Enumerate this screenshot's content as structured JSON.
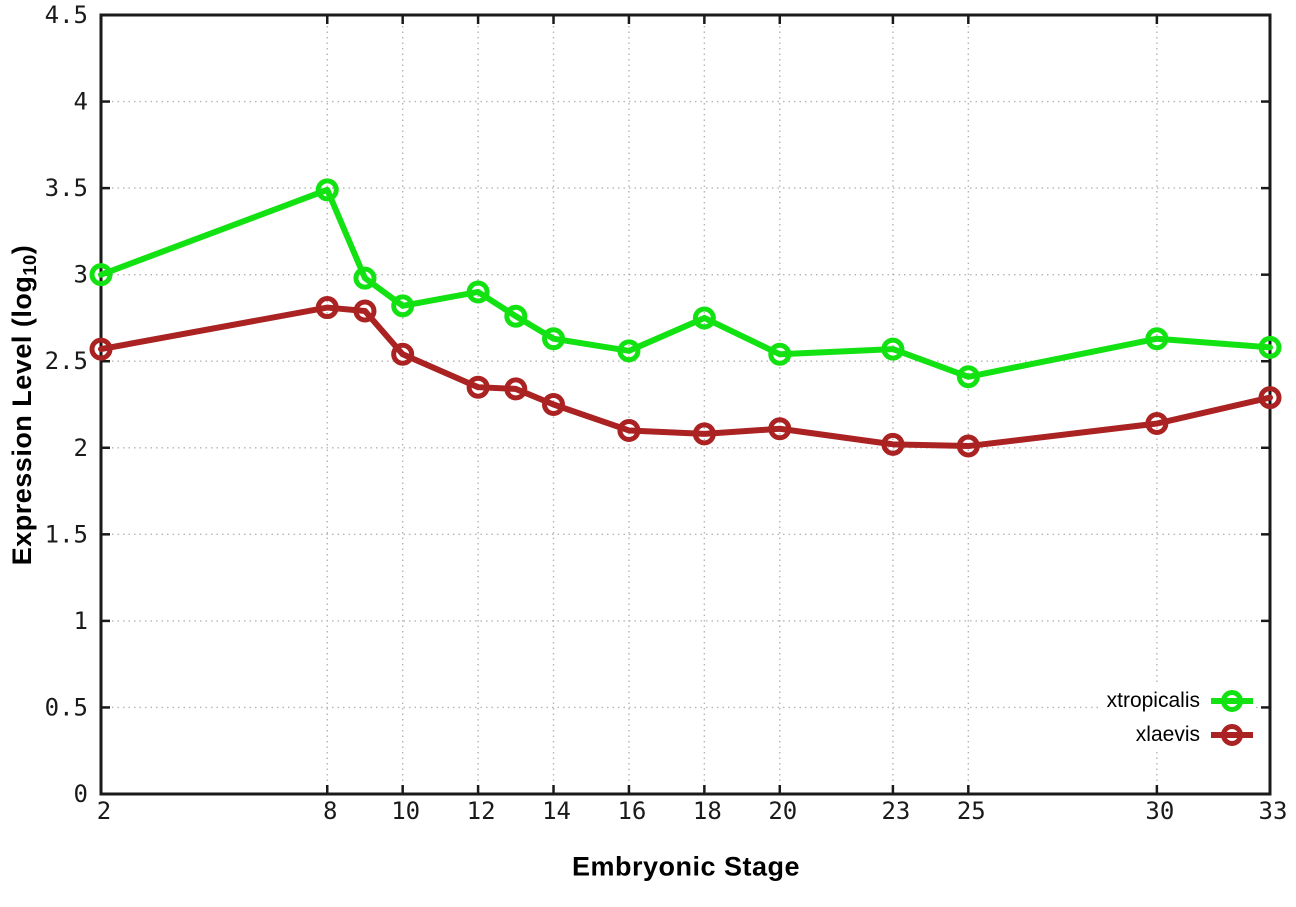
{
  "chart_data": {
    "type": "line",
    "title": "",
    "xlabel": "Embryonic Stage",
    "ylabel": "Expression Level (log10)",
    "ylabel_parts": {
      "main": "Expression Level (log",
      "sub": "10",
      "close": ")"
    },
    "x": [
      2,
      8,
      9,
      10,
      12,
      13,
      14,
      16,
      18,
      20,
      23,
      25,
      30,
      33
    ],
    "series": [
      {
        "name": "xtropicalis",
        "color": "#12e112",
        "values": [
          3.0,
          3.49,
          2.98,
          2.82,
          2.9,
          2.76,
          2.63,
          2.56,
          2.75,
          2.54,
          2.57,
          2.41,
          2.63,
          2.58
        ]
      },
      {
        "name": "xlaevis",
        "color": "#aa2222",
        "values": [
          2.57,
          2.81,
          2.79,
          2.54,
          2.35,
          2.34,
          2.25,
          2.1,
          2.08,
          2.11,
          2.02,
          2.01,
          2.14,
          2.29
        ]
      }
    ],
    "xlim": [
      2,
      33
    ],
    "ylim": [
      0,
      4.5
    ],
    "x_ticks": {
      "values": [
        2,
        8,
        10,
        12,
        14,
        16,
        18,
        20,
        23,
        25,
        30,
        33
      ],
      "labels": [
        "2",
        "8",
        "10",
        "12",
        "14",
        "16",
        "18",
        "20",
        "23",
        "25",
        "30",
        "33"
      ]
    },
    "y_ticks": {
      "values": [
        0,
        0.5,
        1,
        1.5,
        2,
        2.5,
        3,
        3.5,
        4,
        4.5
      ],
      "labels": [
        "0",
        "0.5",
        "1",
        "1.5",
        "2",
        "2.5",
        "3",
        "3.5",
        "4",
        "4.5"
      ]
    },
    "grid": true,
    "legend_position": "bottom-right",
    "colors": {
      "axis": "#1a1a1a",
      "grid": "#b5b5b5",
      "background": "#ffffff",
      "text": "#000000"
    }
  }
}
